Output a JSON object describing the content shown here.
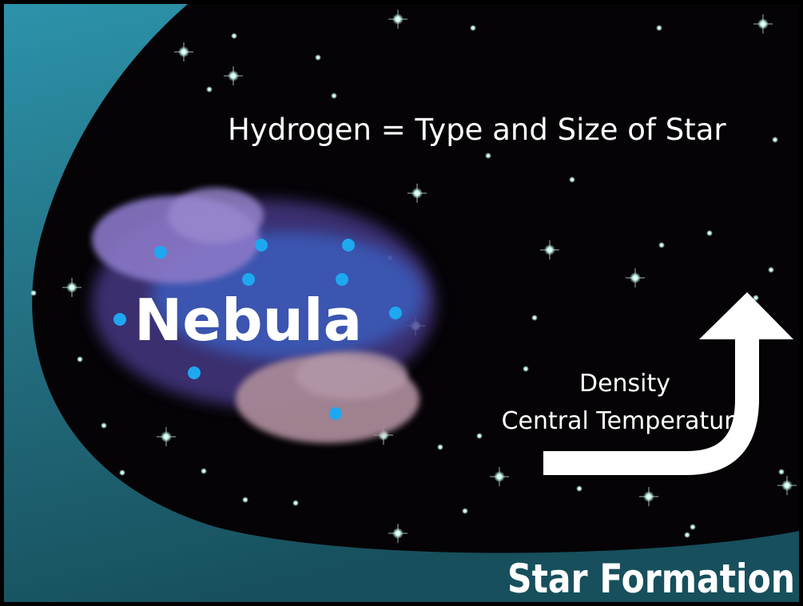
{
  "slide": {
    "subtitle": "Hydrogen = Type and Size of Star",
    "nebula_label": "Nebula",
    "arrow_labels": [
      "Density",
      "Central Temperature"
    ],
    "title": "Star Formation"
  }
}
